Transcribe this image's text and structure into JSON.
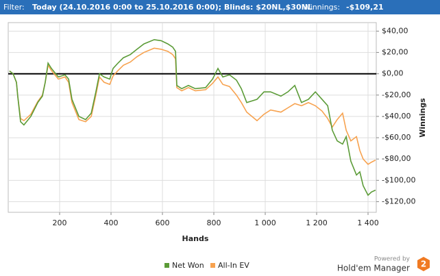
{
  "header": {
    "filter_label": "Filter:",
    "filter_value": "Today (24.10.2016 0:00 to 25.10.2016 0:00); Blinds: $20NL,$30NL",
    "winnings_label": "Winnings:",
    "winnings_value": "-$109,21"
  },
  "branding": {
    "powered_by": "Powered by",
    "product": "Hold'em Manager",
    "logo": "2"
  },
  "chart_data": {
    "type": "line",
    "x_label": "Hands",
    "y_label": "Winnings",
    "grid": true,
    "zero_line": true,
    "x": [
      5,
      19,
      32,
      37,
      48,
      61,
      88,
      115,
      133,
      144,
      155,
      168,
      195,
      221,
      235,
      248,
      275,
      301,
      323,
      341,
      355,
      373,
      395,
      408,
      427,
      448,
      475,
      501,
      528,
      568,
      595,
      621,
      640,
      651,
      656,
      675,
      701,
      728,
      768,
      795,
      816,
      835,
      861,
      888,
      907,
      928,
      968,
      995,
      1021,
      1061,
      1088,
      1115,
      1141,
      1168,
      1195,
      1221,
      1243,
      1261,
      1280,
      1301,
      1315,
      1333,
      1355,
      1368,
      1381,
      1400,
      1413,
      1429
    ],
    "series": [
      {
        "name": "Net Won",
        "color": "#5b9b37",
        "values": [
          2.6,
          0,
          -8,
          -21,
          -45,
          -48,
          -40,
          -27,
          -21,
          -8,
          10,
          5,
          -3,
          -1,
          -5,
          -24,
          -40,
          -43,
          -37,
          -17,
          0,
          -3,
          -5,
          5,
          10,
          15,
          18,
          23,
          28,
          32,
          31,
          28,
          25,
          21,
          -11,
          -14,
          -11,
          -14,
          -13,
          -5,
          5,
          -3,
          -1,
          -6,
          -14,
          -27,
          -24,
          -17,
          -17,
          -21,
          -17,
          -11,
          -27,
          -24,
          -17,
          -24,
          -30,
          -53,
          -63,
          -66,
          -59,
          -82,
          -95,
          -92,
          -105,
          -114,
          -111,
          -109.21
        ]
      },
      {
        "name": "All-In EV",
        "color": "#f7a24f",
        "values": [
          2.6,
          0,
          -8,
          -21,
          -42,
          -44,
          -38,
          -26,
          -20,
          -8,
          8,
          3,
          -5,
          -3,
          -8,
          -27,
          -43,
          -45,
          -40,
          -20,
          -3,
          -8,
          -10,
          -2,
          3,
          8,
          11,
          16,
          20,
          24,
          23,
          21,
          18,
          14,
          -13,
          -16,
          -13,
          -16,
          -15,
          -9,
          -3,
          -10,
          -12,
          -20,
          -27,
          -36,
          -44,
          -38,
          -34,
          -36,
          -32,
          -28,
          -30,
          -27,
          -30,
          -35,
          -42,
          -50,
          -43,
          -37,
          -53,
          -63,
          -59,
          -72,
          -80,
          -85,
          -83,
          -81
        ]
      }
    ],
    "xlim": [
      0,
      1432
    ],
    "xticks": [
      200,
      400,
      600,
      800,
      {
        "value": 1000,
        "label": "1 000"
      },
      {
        "value": 1200,
        "label": "1 200"
      },
      {
        "value": 1400,
        "label": "1 400"
      }
    ],
    "ylim": [
      -130,
      48
    ],
    "yticks": [
      {
        "value": -120,
        "label": "-$120,00"
      },
      {
        "value": -100,
        "label": "-$100,00"
      },
      {
        "value": -80,
        "label": "-$80,00"
      },
      {
        "value": -60,
        "label": "-$60,00"
      },
      {
        "value": -40,
        "label": "-$40,00"
      },
      {
        "value": -20,
        "label": "-$20,00"
      },
      {
        "value": 0,
        "label": "$0,00"
      },
      {
        "value": 20,
        "label": "$20,00"
      },
      {
        "value": 40,
        "label": "$40,00"
      }
    ]
  }
}
